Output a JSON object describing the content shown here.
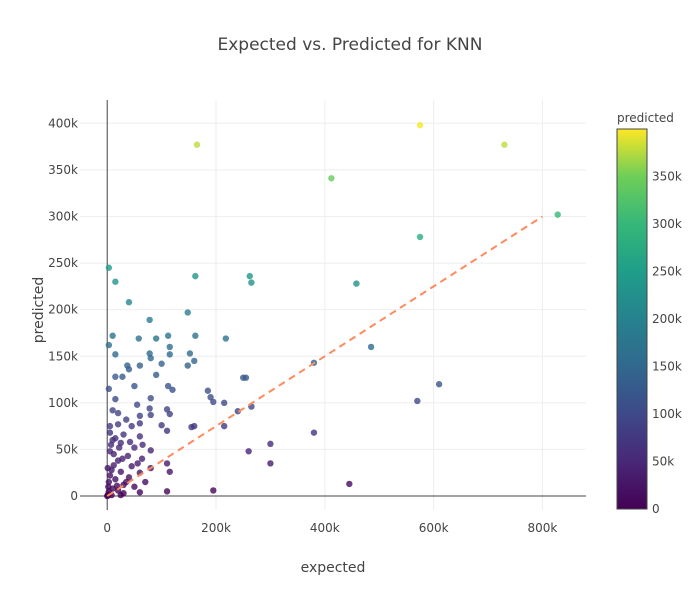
{
  "chart_data": {
    "type": "scatter",
    "title": "Expected vs. Predicted for KNN",
    "xlabel": "expected",
    "ylabel": "predicted",
    "xlim": [
      -50000,
      880000
    ],
    "ylim": [
      -15000,
      425000
    ],
    "x_ticks": [
      0,
      200000,
      400000,
      600000,
      800000
    ],
    "x_tick_labels": [
      "0",
      "200k",
      "400k",
      "600k",
      "800k"
    ],
    "y_ticks": [
      0,
      50000,
      100000,
      150000,
      200000,
      250000,
      300000,
      350000,
      400000
    ],
    "y_tick_labels": [
      "0",
      "50k",
      "100k",
      "150k",
      "200k",
      "250k",
      "300k",
      "350k",
      "400k"
    ],
    "grid": true,
    "reference_line": {
      "style": "dashed",
      "color": "#ff8a5c",
      "x": [
        0,
        800000
      ],
      "y": [
        0,
        300000
      ]
    },
    "colorbar": {
      "title": "predicted",
      "range": [
        0,
        400000
      ],
      "ticks": [
        0,
        50000,
        100000,
        150000,
        200000,
        250000,
        300000,
        350000
      ],
      "tick_labels": [
        "0",
        "50k",
        "100k",
        "150k",
        "200k",
        "250k",
        "300k",
        "350k"
      ],
      "colorscale": "viridis"
    },
    "points": [
      [
        165000,
        377000
      ],
      [
        575000,
        398000
      ],
      [
        730000,
        377000
      ],
      [
        412000,
        341000
      ],
      [
        828000,
        302000
      ],
      [
        575000,
        278000
      ],
      [
        3000,
        245000
      ],
      [
        15000,
        230000
      ],
      [
        162000,
        236000
      ],
      [
        262000,
        236000
      ],
      [
        265000,
        229000
      ],
      [
        458000,
        228000
      ],
      [
        40000,
        208000
      ],
      [
        148000,
        197000
      ],
      [
        78000,
        189000
      ],
      [
        10000,
        172000
      ],
      [
        58000,
        169000
      ],
      [
        90000,
        169000
      ],
      [
        112000,
        172000
      ],
      [
        162000,
        172000
      ],
      [
        218000,
        169000
      ],
      [
        3000,
        162000
      ],
      [
        115000,
        160000
      ],
      [
        485000,
        160000
      ],
      [
        15000,
        152000
      ],
      [
        78000,
        153000
      ],
      [
        115000,
        152000
      ],
      [
        152000,
        153000
      ],
      [
        80000,
        148000
      ],
      [
        160000,
        145000
      ],
      [
        380000,
        143000
      ],
      [
        37000,
        140000
      ],
      [
        60000,
        140000
      ],
      [
        100000,
        142000
      ],
      [
        40000,
        136000
      ],
      [
        148000,
        140000
      ],
      [
        15000,
        128000
      ],
      [
        28000,
        128000
      ],
      [
        90000,
        130000
      ],
      [
        250000,
        127000
      ],
      [
        255000,
        127000
      ],
      [
        112000,
        118000
      ],
      [
        50000,
        118000
      ],
      [
        120000,
        114000
      ],
      [
        3000,
        115000
      ],
      [
        610000,
        120000
      ],
      [
        185000,
        113000
      ],
      [
        190000,
        106000
      ],
      [
        195000,
        101000
      ],
      [
        215000,
        100000
      ],
      [
        570000,
        102000
      ],
      [
        15000,
        104000
      ],
      [
        80000,
        105000
      ],
      [
        55000,
        98000
      ],
      [
        78000,
        94000
      ],
      [
        110000,
        93000
      ],
      [
        265000,
        96000
      ],
      [
        240000,
        91000
      ],
      [
        10000,
        92000
      ],
      [
        20000,
        89000
      ],
      [
        60000,
        86000
      ],
      [
        80000,
        87000
      ],
      [
        115000,
        88000
      ],
      [
        35000,
        82000
      ],
      [
        60000,
        78000
      ],
      [
        100000,
        76000
      ],
      [
        160000,
        75000
      ],
      [
        155000,
        74000
      ],
      [
        215000,
        75000
      ],
      [
        5000,
        75000
      ],
      [
        20000,
        77000
      ],
      [
        45000,
        75000
      ],
      [
        110000,
        70000
      ],
      [
        380000,
        68000
      ],
      [
        5000,
        68000
      ],
      [
        30000,
        66000
      ],
      [
        60000,
        64000
      ],
      [
        10000,
        60000
      ],
      [
        25000,
        57000
      ],
      [
        50000,
        52000
      ],
      [
        300000,
        56000
      ],
      [
        80000,
        49000
      ],
      [
        260000,
        48000
      ],
      [
        5000,
        48000
      ],
      [
        12000,
        45000
      ],
      [
        38000,
        43000
      ],
      [
        64000,
        40000
      ],
      [
        20000,
        38000
      ],
      [
        110000,
        35000
      ],
      [
        300000,
        35000
      ],
      [
        45000,
        32000
      ],
      [
        80000,
        30000
      ],
      [
        8000,
        28000
      ],
      [
        25000,
        26000
      ],
      [
        60000,
        25000
      ],
      [
        115000,
        26000
      ],
      [
        40000,
        20000
      ],
      [
        15000,
        18000
      ],
      [
        3000,
        15000
      ],
      [
        70000,
        15000
      ],
      [
        445000,
        13000
      ],
      [
        30000,
        12000
      ],
      [
        50000,
        10000
      ],
      [
        10000,
        8000
      ],
      [
        20000,
        6000
      ],
      [
        195000,
        6000
      ],
      [
        3000,
        5000
      ],
      [
        60000,
        4000
      ],
      [
        110000,
        5000
      ],
      [
        2000,
        2000
      ],
      [
        8000,
        1000
      ],
      [
        25000,
        1000
      ],
      [
        1000,
        30000
      ],
      [
        5000,
        22000
      ],
      [
        2000,
        10000
      ],
      [
        12000,
        33000
      ],
      [
        18000,
        11000
      ],
      [
        28000,
        40000
      ],
      [
        35000,
        15000
      ],
      [
        7000,
        55000
      ],
      [
        15000,
        62000
      ],
      [
        22000,
        52000
      ],
      [
        42000,
        58000
      ],
      [
        56000,
        35000
      ],
      [
        65000,
        55000
      ],
      [
        30000,
        3000
      ],
      [
        1000,
        500
      ],
      [
        0,
        0
      ]
    ]
  }
}
